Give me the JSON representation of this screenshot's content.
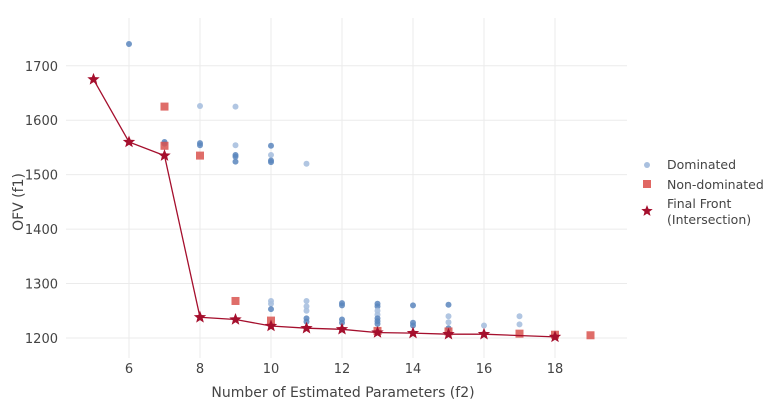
{
  "chart_data": {
    "type": "scatter",
    "title": "",
    "xlabel": "Number of Estimated Parameters (f2)",
    "ylabel": "OFV (f1)",
    "xlim": [
      4.2,
      19.8
    ],
    "ylim": [
      1160,
      1785
    ],
    "xticks": [
      6,
      8,
      10,
      12,
      14,
      16,
      18
    ],
    "yticks": [
      1200,
      1300,
      1400,
      1500,
      1600,
      1700
    ],
    "grid": true,
    "legend_position": "right",
    "colors": {
      "dominated_light": "#a9c0df",
      "dominated_dark": "#5b86bd",
      "non_dominated": "#d9534f",
      "final_front": "#a50f2d"
    },
    "series": [
      {
        "name": "Dominated",
        "marker": "circle",
        "points": [
          {
            "x": 6,
            "y": 1740,
            "shade": "dark"
          },
          {
            "x": 7,
            "y": 1560,
            "shade": "dark"
          },
          {
            "x": 7,
            "y": 1557,
            "shade": "dark"
          },
          {
            "x": 8,
            "y": 1626,
            "shade": "light"
          },
          {
            "x": 8,
            "y": 1558,
            "shade": "dark"
          },
          {
            "x": 8,
            "y": 1554,
            "shade": "dark"
          },
          {
            "x": 9,
            "y": 1625,
            "shade": "light"
          },
          {
            "x": 9,
            "y": 1554,
            "shade": "light"
          },
          {
            "x": 9,
            "y": 1536,
            "shade": "dark"
          },
          {
            "x": 9,
            "y": 1533,
            "shade": "dark"
          },
          {
            "x": 9,
            "y": 1524,
            "shade": "dark"
          },
          {
            "x": 10,
            "y": 1553,
            "shade": "dark"
          },
          {
            "x": 10,
            "y": 1536,
            "shade": "light"
          },
          {
            "x": 10,
            "y": 1526,
            "shade": "dark"
          },
          {
            "x": 10,
            "y": 1523,
            "shade": "dark"
          },
          {
            "x": 11,
            "y": 1520,
            "shade": "light"
          },
          {
            "x": 10,
            "y": 1268,
            "shade": "light"
          },
          {
            "x": 10,
            "y": 1263,
            "shade": "light"
          },
          {
            "x": 10,
            "y": 1253,
            "shade": "dark"
          },
          {
            "x": 11,
            "y": 1268,
            "shade": "light"
          },
          {
            "x": 11,
            "y": 1258,
            "shade": "light"
          },
          {
            "x": 11,
            "y": 1250,
            "shade": "light"
          },
          {
            "x": 11,
            "y": 1236,
            "shade": "dark"
          },
          {
            "x": 11,
            "y": 1230,
            "shade": "dark"
          },
          {
            "x": 12,
            "y": 1264,
            "shade": "dark"
          },
          {
            "x": 12,
            "y": 1260,
            "shade": "dark"
          },
          {
            "x": 12,
            "y": 1234,
            "shade": "dark"
          },
          {
            "x": 12,
            "y": 1228,
            "shade": "dark"
          },
          {
            "x": 13,
            "y": 1263,
            "shade": "dark"
          },
          {
            "x": 13,
            "y": 1258,
            "shade": "dark"
          },
          {
            "x": 13,
            "y": 1250,
            "shade": "light"
          },
          {
            "x": 13,
            "y": 1243,
            "shade": "light"
          },
          {
            "x": 13,
            "y": 1236,
            "shade": "dark"
          },
          {
            "x": 13,
            "y": 1231,
            "shade": "dark"
          },
          {
            "x": 13,
            "y": 1226,
            "shade": "dark"
          },
          {
            "x": 14,
            "y": 1260,
            "shade": "dark"
          },
          {
            "x": 14,
            "y": 1228,
            "shade": "dark"
          },
          {
            "x": 14,
            "y": 1223,
            "shade": "dark"
          },
          {
            "x": 15,
            "y": 1261,
            "shade": "dark"
          },
          {
            "x": 15,
            "y": 1240,
            "shade": "light"
          },
          {
            "x": 15,
            "y": 1229,
            "shade": "light"
          },
          {
            "x": 15,
            "y": 1218,
            "shade": "dark"
          },
          {
            "x": 16,
            "y": 1223,
            "shade": "light"
          },
          {
            "x": 17,
            "y": 1240,
            "shade": "light"
          },
          {
            "x": 17,
            "y": 1225,
            "shade": "light"
          }
        ]
      },
      {
        "name": "Non-dominated",
        "marker": "square",
        "points": [
          {
            "x": 7,
            "y": 1625
          },
          {
            "x": 7,
            "y": 1553
          },
          {
            "x": 8,
            "y": 1535
          },
          {
            "x": 9,
            "y": 1268
          },
          {
            "x": 10,
            "y": 1232
          },
          {
            "x": 13,
            "y": 1213
          },
          {
            "x": 15,
            "y": 1212
          },
          {
            "x": 17,
            "y": 1208
          },
          {
            "x": 18,
            "y": 1206
          },
          {
            "x": 19,
            "y": 1205
          }
        ]
      },
      {
        "name": "Final Front",
        "name_line2": "(Intersection)",
        "marker": "star",
        "line": true,
        "points": [
          {
            "x": 5,
            "y": 1675
          },
          {
            "x": 6,
            "y": 1560
          },
          {
            "x": 7,
            "y": 1535
          },
          {
            "x": 8,
            "y": 1238
          },
          {
            "x": 9,
            "y": 1234
          },
          {
            "x": 10,
            "y": 1222
          },
          {
            "x": 11,
            "y": 1218
          },
          {
            "x": 12,
            "y": 1216
          },
          {
            "x": 13,
            "y": 1210
          },
          {
            "x": 14,
            "y": 1209
          },
          {
            "x": 15,
            "y": 1207
          },
          {
            "x": 16,
            "y": 1207
          },
          {
            "x": 18,
            "y": 1202
          }
        ]
      }
    ]
  }
}
